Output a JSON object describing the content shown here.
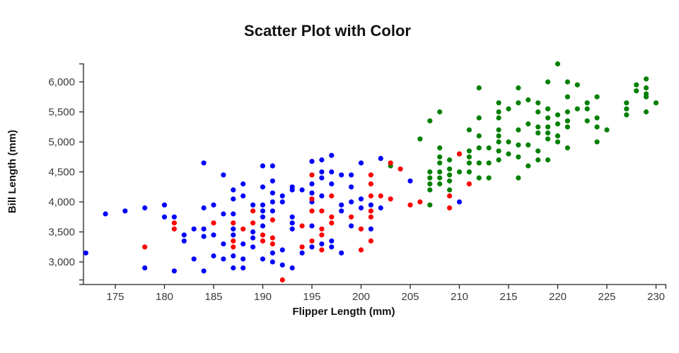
{
  "title": "Scatter Plot with Color",
  "x_axis": {
    "label": "Flipper Length (mm)",
    "tick_values": [
      175,
      180,
      185,
      190,
      195,
      200,
      205,
      210,
      215,
      220,
      225,
      230
    ],
    "tick_labels": [
      "175",
      "180",
      "185",
      "190",
      "195",
      "200",
      "205",
      "210",
      "215",
      "220",
      "225",
      "230"
    ],
    "domain": [
      172,
      231
    ]
  },
  "y_axis": {
    "label": "Bill Length (mm)",
    "tick_values": [
      3000,
      3500,
      4000,
      4500,
      5000,
      5500,
      6000
    ],
    "tick_labels": [
      "3,000",
      "3,500",
      "4,000",
      "4,500",
      "5,000",
      "5,500",
      "6,000"
    ],
    "domain": [
      2700,
      6300
    ]
  },
  "colors": {
    "series_blue": "#0000ff",
    "series_red": "#ff0000",
    "series_green": "#008000",
    "axis_line": "#222222",
    "tick_text": "#3a3a3a",
    "title_text": "#111111"
  },
  "chart_data": {
    "type": "scatter",
    "title": "Scatter Plot with Color",
    "xlabel": "Flipper Length (mm)",
    "ylabel": "Bill Length (mm)",
    "xlim": [
      172,
      231
    ],
    "ylim": [
      2700,
      6300
    ],
    "grid": false,
    "legend": "none",
    "marker_radius": 3.6,
    "series": [
      {
        "name": "green",
        "color": "#008000",
        "points": [
          [
            203,
            4600
          ],
          [
            206,
            5050
          ],
          [
            207,
            5350
          ],
          [
            207,
            4500
          ],
          [
            207,
            4400
          ],
          [
            207,
            4300
          ],
          [
            207,
            4200
          ],
          [
            207,
            3950
          ],
          [
            208,
            5500
          ],
          [
            208,
            4900
          ],
          [
            208,
            4750
          ],
          [
            208,
            4650
          ],
          [
            208,
            4500
          ],
          [
            208,
            4400
          ],
          [
            208,
            4300
          ],
          [
            209,
            4700
          ],
          [
            209,
            4550
          ],
          [
            209,
            4450
          ],
          [
            209,
            4350
          ],
          [
            209,
            4200
          ],
          [
            210,
            4800
          ],
          [
            210,
            4500
          ],
          [
            211,
            5200
          ],
          [
            211,
            4850
          ],
          [
            211,
            4750
          ],
          [
            211,
            4650
          ],
          [
            211,
            4500
          ],
          [
            212,
            5900
          ],
          [
            212,
            5400
          ],
          [
            212,
            5100
          ],
          [
            212,
            4900
          ],
          [
            212,
            4650
          ],
          [
            212,
            4400
          ],
          [
            213,
            4900
          ],
          [
            213,
            4650
          ],
          [
            213,
            4400
          ],
          [
            214,
            5650
          ],
          [
            214,
            5500
          ],
          [
            214,
            5400
          ],
          [
            214,
            5200
          ],
          [
            214,
            5100
          ],
          [
            214,
            5000
          ],
          [
            214,
            4850
          ],
          [
            214,
            4700
          ],
          [
            215,
            5550
          ],
          [
            215,
            5000
          ],
          [
            215,
            4800
          ],
          [
            216,
            5900
          ],
          [
            216,
            5650
          ],
          [
            216,
            5200
          ],
          [
            216,
            4950
          ],
          [
            216,
            4750
          ],
          [
            216,
            4400
          ],
          [
            217,
            5700
          ],
          [
            217,
            5300
          ],
          [
            217,
            4950
          ],
          [
            217,
            4600
          ],
          [
            218,
            5650
          ],
          [
            218,
            5500
          ],
          [
            218,
            5250
          ],
          [
            218,
            5150
          ],
          [
            218,
            4850
          ],
          [
            218,
            4700
          ],
          [
            219,
            6000
          ],
          [
            219,
            5550
          ],
          [
            219,
            5400
          ],
          [
            219,
            5250
          ],
          [
            219,
            5150
          ],
          [
            219,
            5050
          ],
          [
            219,
            4700
          ],
          [
            220,
            6300
          ],
          [
            220,
            5450
          ],
          [
            220,
            5300
          ],
          [
            220,
            5100
          ],
          [
            220,
            5000
          ],
          [
            221,
            6000
          ],
          [
            221,
            5750
          ],
          [
            221,
            5500
          ],
          [
            221,
            5350
          ],
          [
            221,
            5250
          ],
          [
            221,
            4900
          ],
          [
            222,
            5950
          ],
          [
            222,
            5550
          ],
          [
            223,
            5650
          ],
          [
            223,
            5550
          ],
          [
            223,
            5350
          ],
          [
            224,
            5750
          ],
          [
            224,
            5400
          ],
          [
            224,
            5250
          ],
          [
            224,
            5000
          ],
          [
            225,
            5200
          ],
          [
            227,
            5650
          ],
          [
            227,
            5550
          ],
          [
            227,
            5450
          ],
          [
            228,
            5950
          ],
          [
            228,
            5850
          ],
          [
            229,
            6050
          ],
          [
            229,
            5900
          ],
          [
            229,
            5800
          ],
          [
            229,
            5750
          ],
          [
            229,
            5500
          ],
          [
            230,
            5650
          ]
        ]
      },
      {
        "name": "blue",
        "color": "#0000ff",
        "points": [
          [
            172,
            3150
          ],
          [
            174,
            3800
          ],
          [
            176,
            3850
          ],
          [
            178,
            3900
          ],
          [
            178,
            2900
          ],
          [
            180,
            3950
          ],
          [
            180,
            3750
          ],
          [
            181,
            3750
          ],
          [
            181,
            2850
          ],
          [
            182,
            3450
          ],
          [
            182,
            3350
          ],
          [
            183,
            3550
          ],
          [
            183,
            3050
          ],
          [
            184,
            3550
          ],
          [
            184,
            3425
          ],
          [
            184,
            3900
          ],
          [
            184,
            2850
          ],
          [
            184,
            4650
          ],
          [
            185,
            3950
          ],
          [
            185,
            3450
          ],
          [
            185,
            3100
          ],
          [
            186,
            4450
          ],
          [
            186,
            3800
          ],
          [
            186,
            3300
          ],
          [
            186,
            3050
          ],
          [
            187,
            4200
          ],
          [
            187,
            4050
          ],
          [
            187,
            3800
          ],
          [
            187,
            3550
          ],
          [
            187,
            3450
          ],
          [
            187,
            3100
          ],
          [
            187,
            2900
          ],
          [
            188,
            4300
          ],
          [
            188,
            4100
          ],
          [
            188,
            3300
          ],
          [
            188,
            3050
          ],
          [
            188,
            2900
          ],
          [
            189,
            3950
          ],
          [
            189,
            3500
          ],
          [
            189,
            3400
          ],
          [
            189,
            3250
          ],
          [
            190,
            4600
          ],
          [
            190,
            4250
          ],
          [
            190,
            3950
          ],
          [
            190,
            3850
          ],
          [
            190,
            3750
          ],
          [
            190,
            3600
          ],
          [
            190,
            3050
          ],
          [
            191,
            4600
          ],
          [
            191,
            4350
          ],
          [
            191,
            4150
          ],
          [
            191,
            4000
          ],
          [
            191,
            3850
          ],
          [
            191,
            3150
          ],
          [
            191,
            3000
          ],
          [
            192,
            4100
          ],
          [
            192,
            4000
          ],
          [
            192,
            3200
          ],
          [
            192,
            2950
          ],
          [
            193,
            4250
          ],
          [
            193,
            4200
          ],
          [
            193,
            3750
          ],
          [
            193,
            3650
          ],
          [
            193,
            3550
          ],
          [
            193,
            2900
          ],
          [
            194,
            4200
          ],
          [
            194,
            3150
          ],
          [
            195,
            4675
          ],
          [
            195,
            4300
          ],
          [
            195,
            4150
          ],
          [
            195,
            4000
          ],
          [
            195,
            3600
          ],
          [
            195,
            3250
          ],
          [
            196,
            4700
          ],
          [
            196,
            4500
          ],
          [
            196,
            4400
          ],
          [
            196,
            4100
          ],
          [
            196,
            3300
          ],
          [
            197,
            4775
          ],
          [
            197,
            4500
          ],
          [
            197,
            4300
          ],
          [
            197,
            3350
          ],
          [
            197,
            3250
          ],
          [
            198,
            4450
          ],
          [
            198,
            3950
          ],
          [
            198,
            3850
          ],
          [
            198,
            3150
          ],
          [
            199,
            4450
          ],
          [
            199,
            4250
          ],
          [
            199,
            4000
          ],
          [
            199,
            3600
          ],
          [
            200,
            4650
          ],
          [
            200,
            4050
          ],
          [
            200,
            3900
          ],
          [
            201,
            3950
          ],
          [
            201,
            3550
          ],
          [
            202,
            4725
          ],
          [
            202,
            3900
          ],
          [
            205,
            4350
          ],
          [
            210,
            4000
          ]
        ]
      },
      {
        "name": "red",
        "color": "#ff0000",
        "points": [
          [
            178,
            3250
          ],
          [
            181,
            3650
          ],
          [
            181,
            3550
          ],
          [
            185,
            3650
          ],
          [
            187,
            3650
          ],
          [
            187,
            3350
          ],
          [
            187,
            3250
          ],
          [
            188,
            3550
          ],
          [
            189,
            3850
          ],
          [
            189,
            3650
          ],
          [
            190,
            3450
          ],
          [
            190,
            3350
          ],
          [
            191,
            3700
          ],
          [
            191,
            3400
          ],
          [
            191,
            3300
          ],
          [
            192,
            2700
          ],
          [
            194,
            3600
          ],
          [
            194,
            3250
          ],
          [
            195,
            4450
          ],
          [
            195,
            4050
          ],
          [
            195,
            3850
          ],
          [
            195,
            3350
          ],
          [
            196,
            3850
          ],
          [
            196,
            3550
          ],
          [
            196,
            3450
          ],
          [
            196,
            3200
          ],
          [
            197,
            4100
          ],
          [
            197,
            3750
          ],
          [
            197,
            3650
          ],
          [
            199,
            3750
          ],
          [
            200,
            3550
          ],
          [
            200,
            3200
          ],
          [
            201,
            4450
          ],
          [
            201,
            4300
          ],
          [
            201,
            4100
          ],
          [
            201,
            3850
          ],
          [
            201,
            3750
          ],
          [
            201,
            3350
          ],
          [
            202,
            4100
          ],
          [
            203,
            4650
          ],
          [
            203,
            4050
          ],
          [
            204,
            4550
          ],
          [
            205,
            3950
          ],
          [
            206,
            4000
          ],
          [
            209,
            4100
          ],
          [
            209,
            3900
          ],
          [
            210,
            4800
          ],
          [
            211,
            4300
          ]
        ]
      }
    ]
  }
}
